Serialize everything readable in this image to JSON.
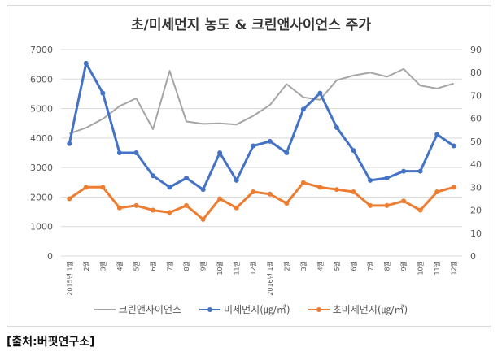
{
  "chart_data": {
    "type": "line",
    "title": "초/미세먼지 농도 & 크린앤사이언스 주가",
    "categories": [
      "2015년 1월",
      "2월",
      "3월",
      "4월",
      "5월",
      "6월",
      "7월",
      "8월",
      "9월",
      "10월",
      "11월",
      "12월",
      "2016년 1월",
      "2월",
      "3월",
      "4월",
      "5월",
      "6월",
      "7월",
      "8월",
      "9월",
      "10월",
      "11월",
      "12월"
    ],
    "y_left": {
      "lim": [
        0,
        7000
      ],
      "ticks": [
        0,
        1000,
        2000,
        3000,
        4000,
        5000,
        6000,
        7000
      ]
    },
    "y_right": {
      "lim": [
        0,
        90
      ],
      "ticks": [
        0,
        10,
        20,
        30,
        40,
        50,
        60,
        70,
        80,
        90
      ]
    },
    "series": [
      {
        "name": "크린앤사이언스",
        "axis": "left",
        "color": "#a5a5a5",
        "markers": false,
        "values": [
          4150,
          4350,
          4650,
          5080,
          5350,
          4300,
          6280,
          4560,
          4480,
          4500,
          4460,
          4750,
          5120,
          5830,
          5380,
          5300,
          5960,
          6120,
          6220,
          6080,
          6340,
          5780,
          5680,
          5850
        ]
      },
      {
        "name": "미세먼지(㎍/㎥)",
        "axis": "right",
        "color": "#4472c4",
        "markers": true,
        "values": [
          49,
          84,
          71,
          45,
          45,
          35,
          30,
          34,
          29,
          45,
          33,
          48,
          50,
          45,
          64,
          71,
          56,
          46,
          33,
          34,
          37,
          37,
          53,
          48
        ]
      },
      {
        "name": "초미세먼지(㎍/㎥)",
        "axis": "right",
        "color": "#ed7d31",
        "markers": true,
        "values": [
          25,
          30,
          30,
          21,
          22,
          20,
          19,
          22,
          16,
          25,
          21,
          28,
          27,
          23,
          32,
          30,
          29,
          28,
          22,
          22,
          24,
          20,
          28,
          30
        ]
      }
    ],
    "legend_position": "bottom",
    "grid": "horizontal"
  },
  "source_note": "[출처:버핏연구소]"
}
